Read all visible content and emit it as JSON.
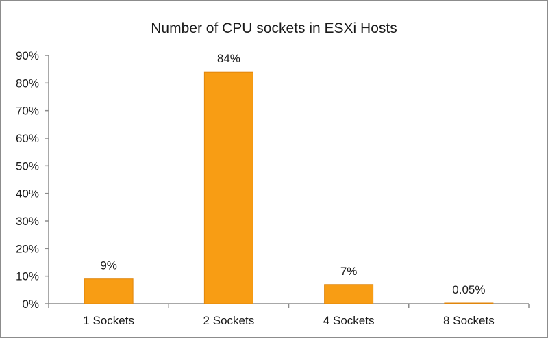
{
  "chart_data": {
    "type": "bar",
    "title": "Number of CPU sockets in ESXi Hosts",
    "categories": [
      "1 Sockets",
      "2 Sockets",
      "4 Sockets",
      "8 Sockets"
    ],
    "values": [
      9,
      84,
      7,
      0.05
    ],
    "data_labels": [
      "9%",
      "84%",
      "7%",
      "0.05%"
    ],
    "ylim": [
      0,
      90
    ],
    "yticks": [
      0,
      10,
      20,
      30,
      40,
      50,
      60,
      70,
      80,
      90
    ],
    "ytick_labels": [
      "0%",
      "10%",
      "20%",
      "30%",
      "40%",
      "50%",
      "60%",
      "70%",
      "80%",
      "90%"
    ],
    "xlabel": "",
    "ylabel": "",
    "grid": false,
    "legend": "none",
    "colors": {
      "bar": "#f89d14",
      "bar_border": "#e0860c",
      "axis": "#8c8c8c"
    }
  }
}
